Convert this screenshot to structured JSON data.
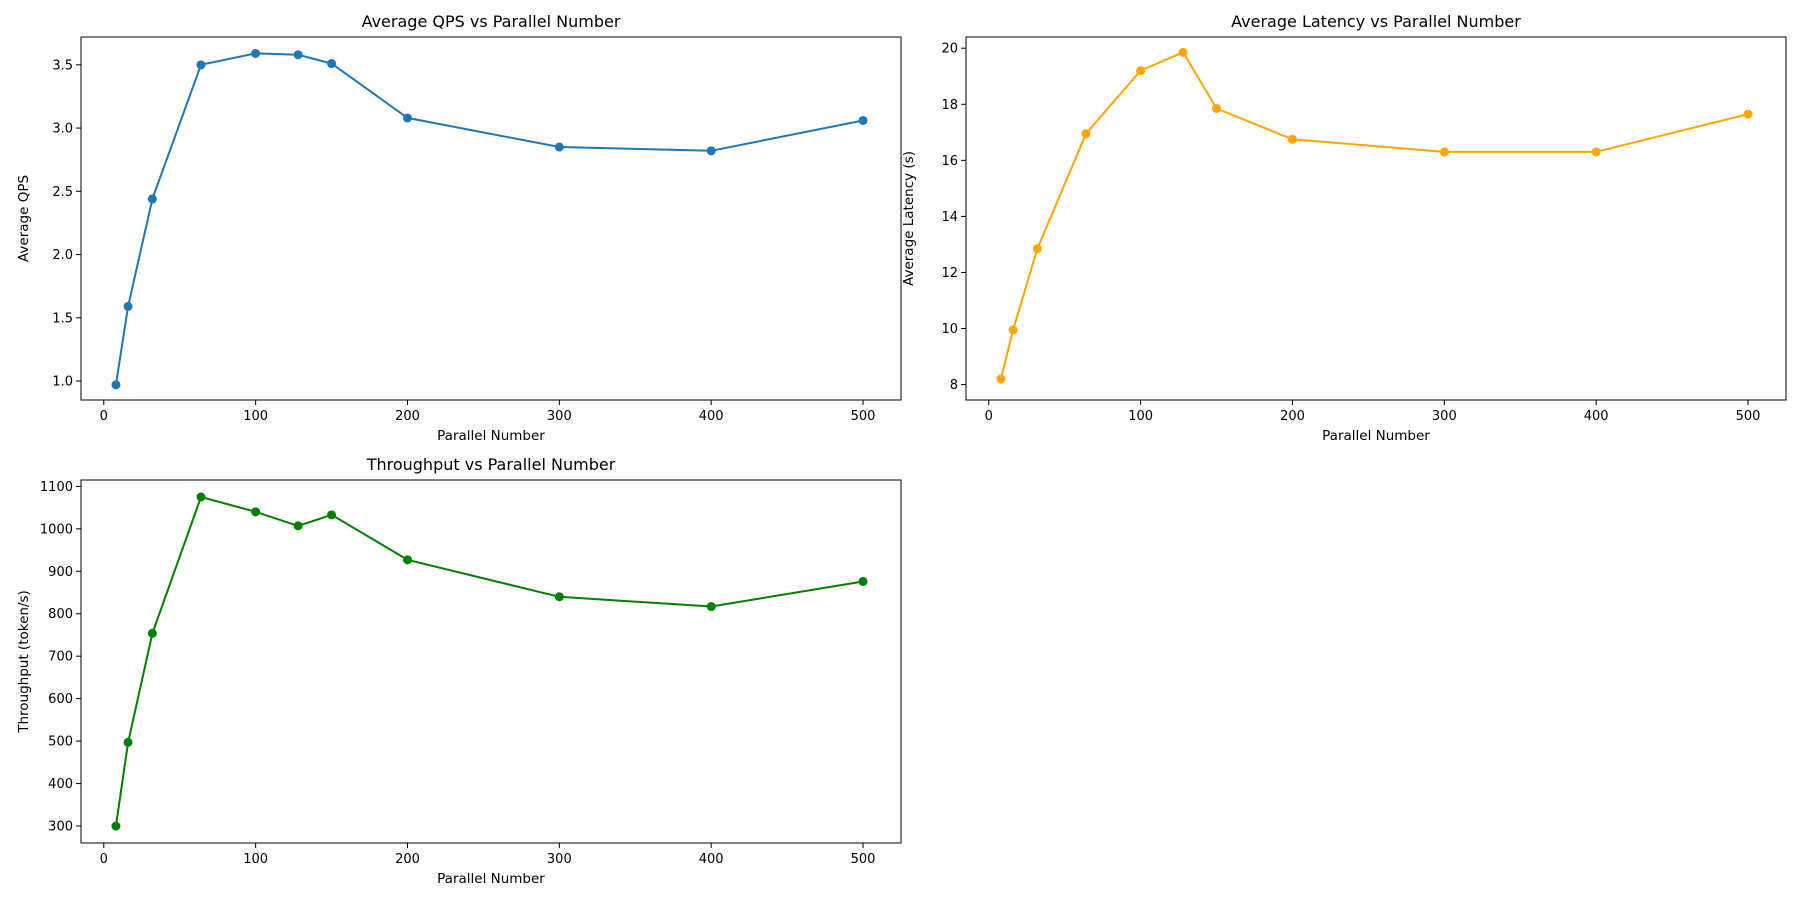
{
  "chart_data": [
    {
      "type": "line",
      "title": "Average QPS vs Parallel Number",
      "xlabel": "Parallel Number",
      "ylabel": "Average QPS",
      "color": "#1f77b4",
      "x": [
        8,
        16,
        32,
        64,
        100,
        128,
        150,
        200,
        300,
        400,
        500
      ],
      "values": [
        0.97,
        1.59,
        2.44,
        3.5,
        3.59,
        3.58,
        3.51,
        3.08,
        2.85,
        2.82,
        3.06
      ],
      "xlim": [
        -15,
        525
      ],
      "ylim": [
        0.85,
        3.72
      ],
      "xticks": [
        0,
        100,
        200,
        300,
        400,
        500
      ],
      "xtick_labels": [
        "0",
        "100",
        "200",
        "300",
        "400",
        "500"
      ],
      "yticks": [
        1.0,
        1.5,
        2.0,
        2.5,
        3.0,
        3.5
      ],
      "ytick_labels": [
        "1.0",
        "1.5",
        "2.0",
        "2.5",
        "3.0",
        "3.5"
      ],
      "grid": false
    },
    {
      "type": "line",
      "title": "Average Latency vs Parallel Number",
      "xlabel": "Parallel Number",
      "ylabel": "Average Latency (s)",
      "color": "#ffa500",
      "x": [
        8,
        16,
        32,
        64,
        100,
        128,
        150,
        200,
        300,
        400,
        500
      ],
      "values": [
        8.2,
        9.95,
        12.85,
        16.95,
        19.2,
        19.85,
        17.85,
        16.75,
        16.3,
        16.3,
        17.65
      ],
      "xlim": [
        -15,
        525
      ],
      "ylim": [
        7.45,
        20.4
      ],
      "xticks": [
        0,
        100,
        200,
        300,
        400,
        500
      ],
      "xtick_labels": [
        "0",
        "100",
        "200",
        "300",
        "400",
        "500"
      ],
      "yticks": [
        8,
        10,
        12,
        14,
        16,
        18,
        20
      ],
      "ytick_labels": [
        "8",
        "10",
        "12",
        "14",
        "16",
        "18",
        "20"
      ],
      "grid": false
    },
    {
      "type": "line",
      "title": "Throughput vs Parallel Number",
      "xlabel": "Parallel Number",
      "ylabel": "Throughput (token/s)",
      "color": "#008000",
      "x": [
        8,
        16,
        32,
        64,
        100,
        128,
        150,
        200,
        300,
        400,
        500
      ],
      "values": [
        300,
        497,
        754,
        1075,
        1040,
        1007,
        1033,
        927,
        840,
        817,
        876
      ],
      "xlim": [
        -15,
        525
      ],
      "ylim": [
        260,
        1115
      ],
      "xticks": [
        0,
        100,
        200,
        300,
        400,
        500
      ],
      "xtick_labels": [
        "0",
        "100",
        "200",
        "300",
        "400",
        "500"
      ],
      "yticks": [
        300,
        400,
        500,
        600,
        700,
        800,
        900,
        1000,
        1100
      ],
      "ytick_labels": [
        "300",
        "400",
        "500",
        "600",
        "700",
        "800",
        "900",
        "1000",
        "1100"
      ],
      "grid": false
    }
  ]
}
